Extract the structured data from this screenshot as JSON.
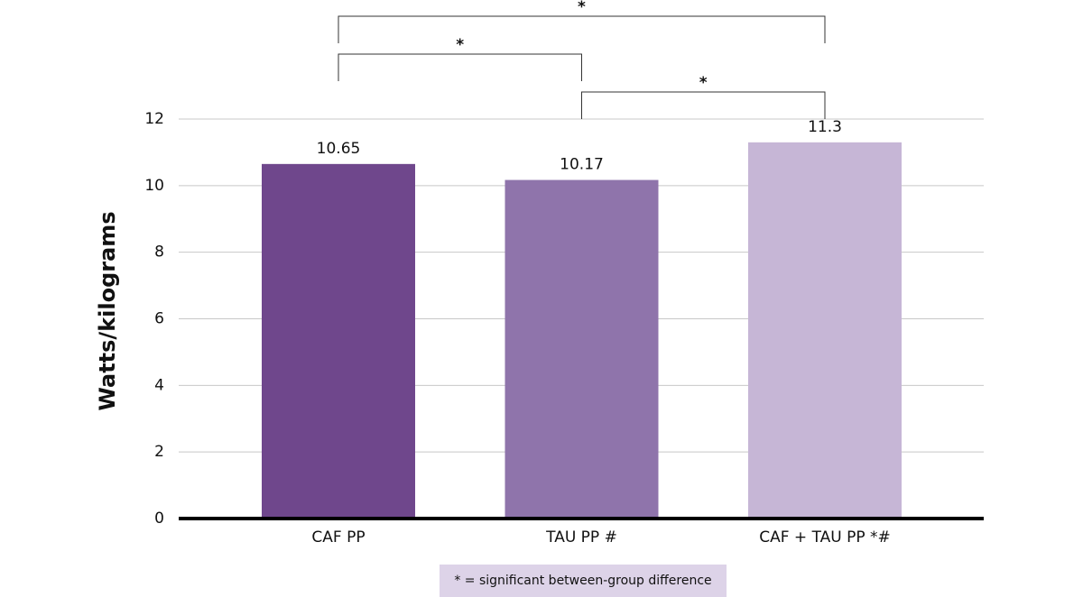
{
  "chart_data": {
    "type": "bar",
    "y_label": "Watts/kilograms",
    "categories": [
      "CAF PP",
      "TAU PP #",
      "CAF + TAU PP *#"
    ],
    "values": [
      10.65,
      10.17,
      11.3
    ],
    "colors": [
      "#6f478c",
      "#8f74ab",
      "#c6b6d6"
    ],
    "ylim": [
      0,
      12
    ],
    "yticks": [
      0,
      2,
      4,
      6,
      8,
      10,
      12
    ],
    "grid": true,
    "annotations": [
      "*",
      "*",
      "*"
    ],
    "note": "* = significant between-group difference"
  }
}
